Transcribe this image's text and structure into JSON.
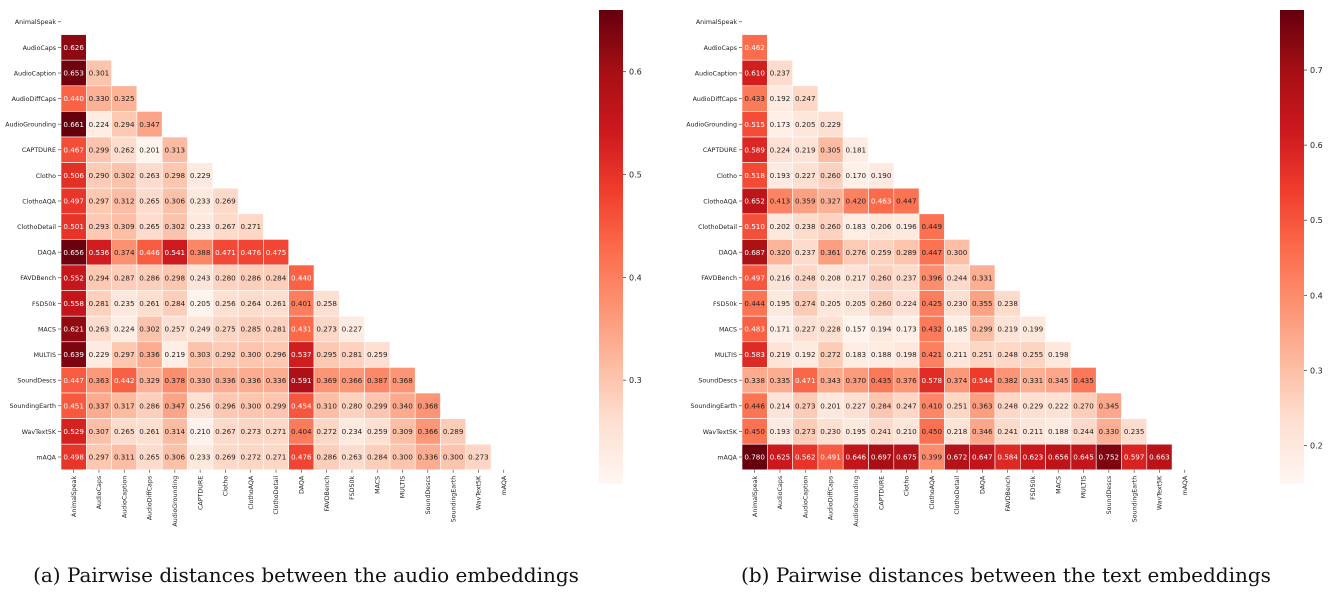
{
  "chart_data": [
    {
      "type": "heatmap",
      "subtitle": "(a) Pairwise distances between the audio embeddings",
      "labels": [
        "AnimalSpeak",
        "AudioCaps",
        "AudioCaption",
        "AudioDiffCaps",
        "AudioGrounding",
        "CAPTDURE",
        "Clotho",
        "ClothoAQA",
        "ClothoDetail",
        "DAQA",
        "FAVDBench",
        "FSD50k",
        "MACS",
        "MULTIS",
        "SoundDescs",
        "SoundingEarth",
        "WavText5K",
        "mAQA"
      ],
      "values": [
        [],
        [
          0.626
        ],
        [
          0.653,
          0.301
        ],
        [
          0.44,
          0.33,
          0.325
        ],
        [
          0.661,
          0.224,
          0.294,
          0.347
        ],
        [
          0.467,
          0.299,
          0.262,
          0.201,
          0.313
        ],
        [
          0.506,
          0.29,
          0.302,
          0.263,
          0.298,
          0.229
        ],
        [
          0.497,
          0.297,
          0.312,
          0.265,
          0.306,
          0.233,
          0.269
        ],
        [
          0.501,
          0.293,
          0.309,
          0.265,
          0.302,
          0.233,
          0.267,
          0.271
        ],
        [
          0.656,
          0.536,
          0.374,
          0.446,
          0.541,
          0.388,
          0.471,
          0.476,
          0.475
        ],
        [
          0.552,
          0.294,
          0.287,
          0.286,
          0.298,
          0.243,
          0.28,
          0.286,
          0.284,
          0.44
        ],
        [
          0.558,
          0.281,
          0.235,
          0.261,
          0.284,
          0.205,
          0.256,
          0.264,
          0.261,
          0.401,
          0.258
        ],
        [
          0.621,
          0.263,
          0.224,
          0.302,
          0.257,
          0.249,
          0.275,
          0.285,
          0.281,
          0.431,
          0.273,
          0.227
        ],
        [
          0.639,
          0.229,
          0.297,
          0.336,
          0.219,
          0.303,
          0.292,
          0.3,
          0.296,
          0.537,
          0.295,
          0.281,
          0.259
        ],
        [
          0.447,
          0.363,
          0.442,
          0.329,
          0.378,
          0.33,
          0.336,
          0.336,
          0.336,
          0.591,
          0.369,
          0.366,
          0.387,
          0.368
        ],
        [
          0.451,
          0.337,
          0.317,
          0.286,
          0.347,
          0.256,
          0.296,
          0.3,
          0.299,
          0.454,
          0.31,
          0.28,
          0.299,
          0.34,
          0.368
        ],
        [
          0.529,
          0.307,
          0.265,
          0.261,
          0.314,
          0.21,
          0.267,
          0.273,
          0.271,
          0.404,
          0.272,
          0.234,
          0.259,
          0.309,
          0.366,
          0.289
        ],
        [
          0.498,
          0.297,
          0.311,
          0.265,
          0.306,
          0.233,
          0.269,
          0.272,
          0.271,
          0.476,
          0.286,
          0.263,
          0.284,
          0.3,
          0.336,
          0.3,
          0.273
        ]
      ],
      "colorbar": {
        "min": 0.2,
        "max": 0.66,
        "ticks": [
          0.3,
          0.4,
          0.5,
          0.6
        ]
      }
    },
    {
      "type": "heatmap",
      "subtitle": "(b) Pairwise distances between the text embeddings",
      "labels": [
        "AnimalSpeak",
        "AudioCaps",
        "AudioCaption",
        "AudioDiffCaps",
        "AudioGrounding",
        "CAPTDURE",
        "Clotho",
        "ClothoAQA",
        "ClothoDetail",
        "DAQA",
        "FAVDBench",
        "FSD50k",
        "MACS",
        "MULTIS",
        "SoundDescs",
        "SoundingEarth",
        "WavText5K",
        "mAQA"
      ],
      "values": [
        [],
        [
          0.462
        ],
        [
          0.61,
          0.237
        ],
        [
          0.433,
          0.192,
          0.247
        ],
        [
          0.515,
          0.173,
          0.205,
          0.229
        ],
        [
          0.589,
          0.224,
          0.219,
          0.305,
          0.181
        ],
        [
          0.518,
          0.193,
          0.227,
          0.26,
          0.17,
          0.19
        ],
        [
          0.652,
          0.413,
          0.359,
          0.327,
          0.42,
          0.463,
          0.447
        ],
        [
          0.51,
          0.202,
          0.238,
          0.26,
          0.183,
          0.206,
          0.196,
          0.449
        ],
        [
          0.687,
          0.32,
          0.237,
          0.361,
          0.276,
          0.259,
          0.289,
          0.447,
          0.3
        ],
        [
          0.497,
          0.216,
          0.248,
          0.208,
          0.217,
          0.26,
          0.237,
          0.396,
          0.244,
          0.331
        ],
        [
          0.444,
          0.195,
          0.274,
          0.205,
          0.205,
          0.26,
          0.224,
          0.425,
          0.23,
          0.355,
          0.238
        ],
        [
          0.483,
          0.171,
          0.227,
          0.228,
          0.157,
          0.194,
          0.173,
          0.432,
          0.185,
          0.299,
          0.219,
          0.199
        ],
        [
          0.583,
          0.219,
          0.192,
          0.272,
          0.183,
          0.188,
          0.198,
          0.421,
          0.211,
          0.251,
          0.248,
          0.255,
          0.198
        ],
        [
          0.338,
          0.335,
          0.471,
          0.343,
          0.37,
          0.435,
          0.376,
          0.578,
          0.374,
          0.544,
          0.382,
          0.331,
          0.345,
          0.435
        ],
        [
          0.446,
          0.214,
          0.273,
          0.201,
          0.227,
          0.284,
          0.247,
          0.41,
          0.251,
          0.363,
          0.248,
          0.229,
          0.222,
          0.27,
          0.345
        ],
        [
          0.45,
          0.193,
          0.273,
          0.23,
          0.195,
          0.241,
          0.21,
          0.45,
          0.218,
          0.346,
          0.241,
          0.211,
          0.188,
          0.244,
          0.33,
          0.235
        ],
        [
          0.78,
          0.625,
          0.562,
          0.491,
          0.646,
          0.697,
          0.675,
          0.399,
          0.672,
          0.647,
          0.584,
          0.623,
          0.656,
          0.645,
          0.752,
          0.597,
          0.663
        ]
      ],
      "colorbar": {
        "min": 0.15,
        "max": 0.78,
        "ticks": [
          0.2,
          0.3,
          0.4,
          0.5,
          0.6,
          0.7
        ]
      }
    }
  ]
}
